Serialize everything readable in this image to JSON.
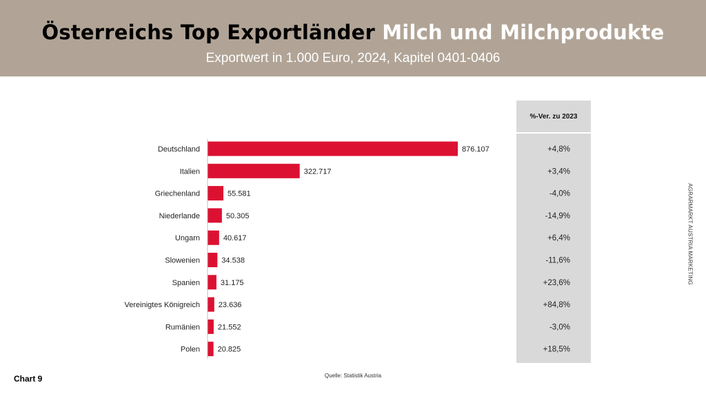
{
  "header": {
    "title_part1": "Österreichs Top Exportländer",
    "title_part2": "Milch und Milchprodukte",
    "subtitle": "Exportwert in 1.000 Euro, 2024, Kapitel 0401-0406"
  },
  "change_column": {
    "header": "%-Ver. zu 2023"
  },
  "side_credit": "AGRARMARKT AUSTRIA MARKETING",
  "footer": {
    "chart_number": "Chart 9",
    "source": "Quelle: Statistik Austria"
  },
  "colors": {
    "bar": "#dc1132",
    "header_bg": "#b1a496",
    "panel_bg": "#d9d9d9"
  },
  "chart_data": {
    "type": "bar",
    "orientation": "horizontal",
    "categories": [
      "Deutschland",
      "Italien",
      "Griechenland",
      "Niederlande",
      "Ungarn",
      "Slowenien",
      "Spanien",
      "Vereinigtes Königreich",
      "Rumänien",
      "Polen"
    ],
    "values": [
      876107,
      322717,
      55581,
      50305,
      40617,
      34538,
      31175,
      23636,
      21552,
      20825
    ],
    "value_labels": [
      "876.107",
      "322.717",
      "55.581",
      "50.305",
      "40.617",
      "34.538",
      "31.175",
      "23.636",
      "21.552",
      "20.825"
    ],
    "changes": [
      "+4,8%",
      "+3,4%",
      "-4,0%",
      "-14,9%",
      "+6,4%",
      "-11,6%",
      "+23,6%",
      "+84,8%",
      "-3,0%",
      "+18,5%"
    ],
    "xlim": [
      0,
      876107
    ],
    "grid": false,
    "legend": "none"
  }
}
